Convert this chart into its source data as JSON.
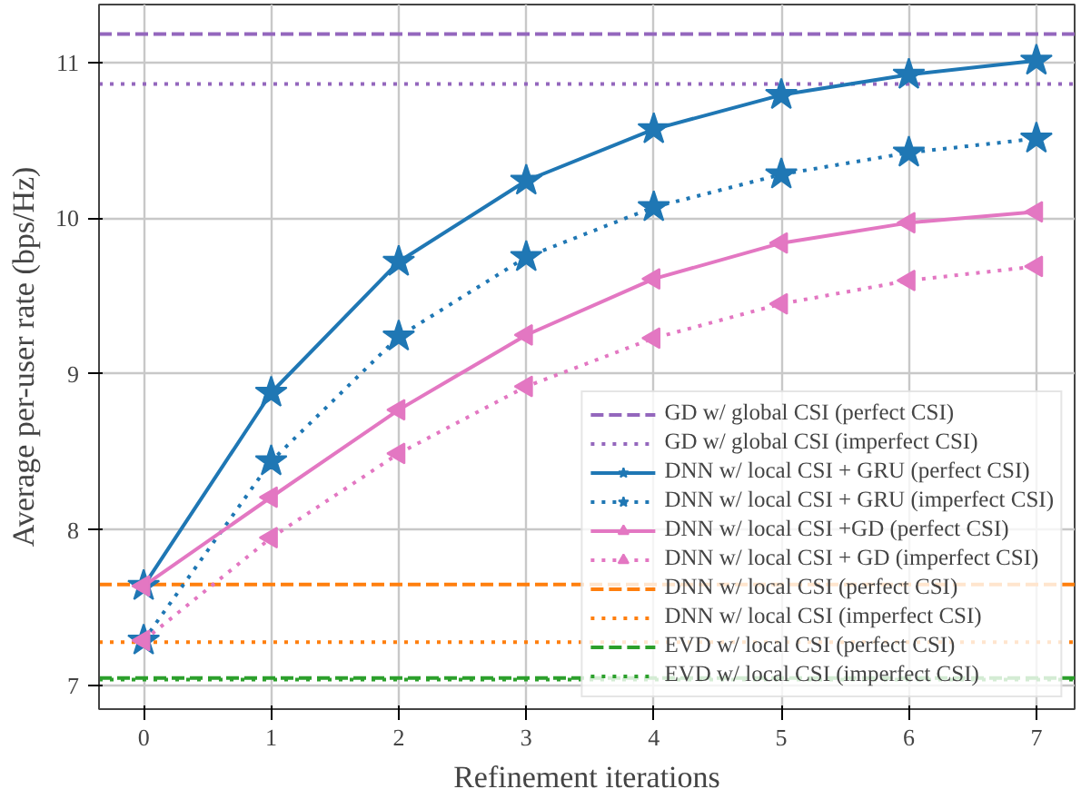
{
  "chart_data": {
    "type": "line",
    "xlabel": "Refinement iterations",
    "ylabel": "Average per-user rate (bps/Hz)",
    "x": [
      0,
      1,
      2,
      3,
      4,
      5,
      6,
      7
    ],
    "xlim": [
      -0.35,
      7.3
    ],
    "ylim": [
      6.85,
      11.37
    ],
    "xticks": [
      0,
      1,
      2,
      3,
      4,
      5,
      6,
      7
    ],
    "yticks": [
      7,
      8,
      9,
      10,
      11
    ],
    "grid": true,
    "legend": "bottom right",
    "series": [
      {
        "name": "DNN w/ local CSI + GRU (perfect CSI)",
        "color": "#1f77b4",
        "marker": "star",
        "line_style": "solid",
        "values": [
          7.64,
          8.88,
          9.72,
          10.24,
          10.57,
          10.79,
          10.92,
          11.01
        ]
      },
      {
        "name": "DNN w/ local CSI + GRU (imperfect CSI)",
        "color": "#1f77b4",
        "marker": "star",
        "line_style": "dotted",
        "values": [
          7.29,
          8.44,
          9.24,
          9.75,
          10.07,
          10.28,
          10.42,
          10.51
        ]
      },
      {
        "name": "DNN w/ local CSI +GD (perfect CSI)",
        "color": "#e377c2",
        "marker": "triangle",
        "line_style": "solid",
        "values": [
          7.64,
          8.21,
          8.77,
          9.25,
          9.61,
          9.84,
          9.97,
          10.04
        ]
      },
      {
        "name": "DNN w/ local CSI + GD (imperfect CSI)",
        "color": "#e377c2",
        "marker": "triangle",
        "line_style": "dotted",
        "values": [
          7.29,
          7.95,
          8.49,
          8.92,
          9.23,
          9.45,
          9.6,
          9.69
        ]
      }
    ],
    "ref_lines": [
      {
        "axis": "y",
        "value": 11.18,
        "label": "GD w/ global CSI (perfect CSI)",
        "color": "#9467bd",
        "line_style": "dashed"
      },
      {
        "axis": "y",
        "value": 10.86,
        "label": "GD w/ global CSI (imperfect CSI)",
        "color": "#9467bd",
        "line_style": "dotted"
      },
      {
        "axis": "y",
        "value": 7.65,
        "label": "DNN w/ local CSI (perfect CSI)",
        "color": "#ff7f0e",
        "line_style": "dashed"
      },
      {
        "axis": "y",
        "value": 7.28,
        "label": "DNN w/ local CSI (imperfect CSI)",
        "color": "#ff7f0e",
        "line_style": "dotted"
      },
      {
        "axis": "y",
        "value": 7.05,
        "label": "EVD w/ local CSI (perfect CSI)",
        "color": "#2ca02c",
        "line_style": "dashed"
      },
      {
        "axis": "y",
        "value": 7.04,
        "label": "EVD w/ local CSI (imperfect CSI)",
        "color": "#2ca02c",
        "line_style": "dotted"
      }
    ]
  }
}
